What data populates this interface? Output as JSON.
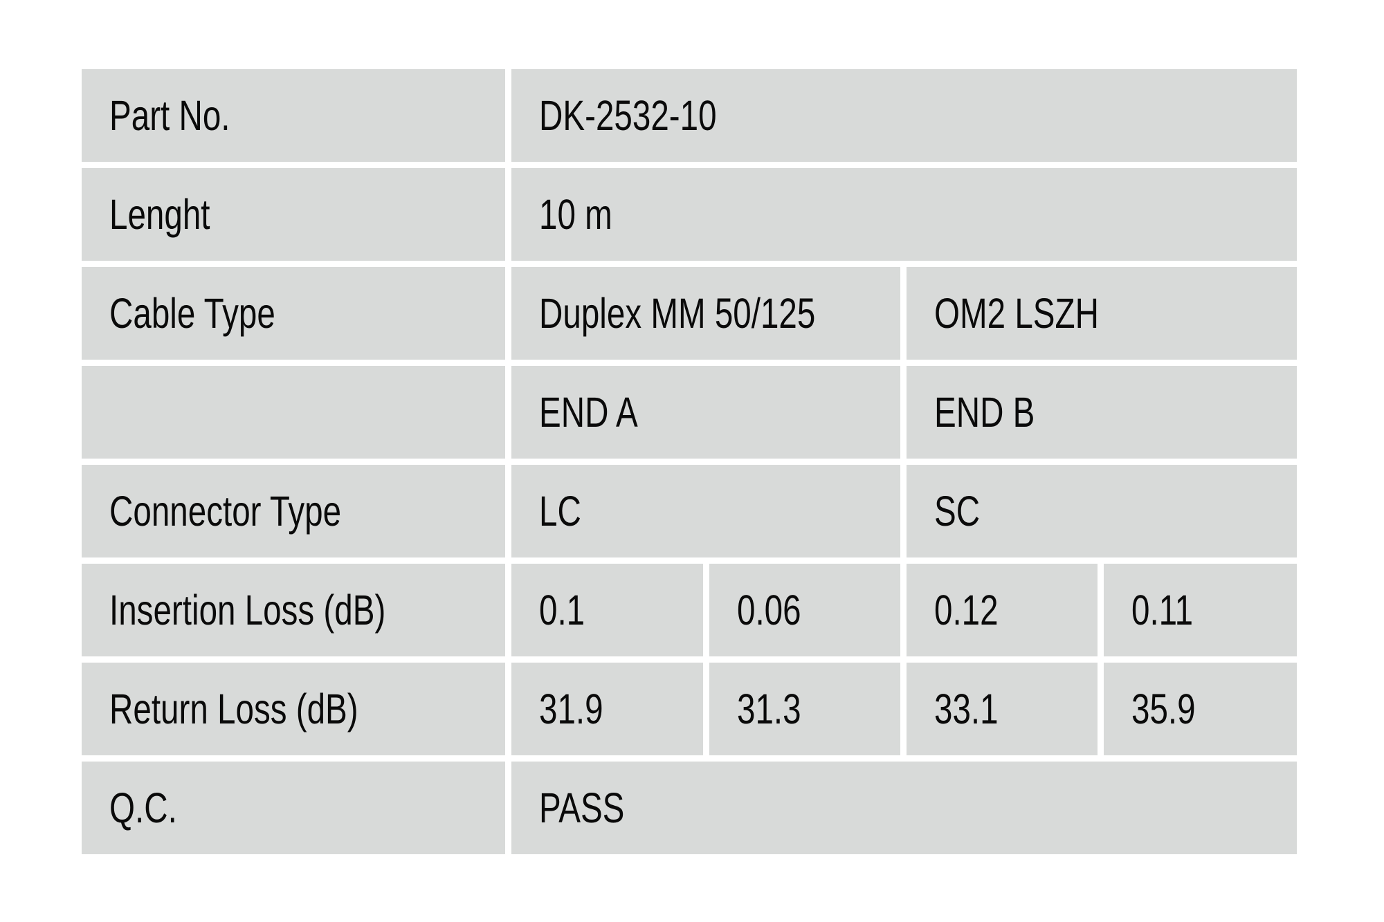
{
  "table": {
    "colors": {
      "cell_bg": "#d8dad9",
      "page_bg": "#ffffff",
      "text": "#0a0a0a"
    },
    "rows": [
      {
        "label": "Part No.",
        "cells": [
          {
            "text": "DK-2532-10"
          }
        ]
      },
      {
        "label": "Lenght",
        "cells": [
          {
            "text": "10 m"
          }
        ]
      },
      {
        "label": "Cable Type",
        "cells": [
          {
            "text": "Duplex MM 50/125"
          },
          {
            "text": "OM2 LSZH"
          }
        ]
      },
      {
        "label": "",
        "cells": [
          {
            "text": "END A"
          },
          {
            "text": "END B"
          }
        ]
      },
      {
        "label": "Connector Type",
        "cells": [
          {
            "text": "LC"
          },
          {
            "text": "SC"
          }
        ]
      },
      {
        "label": "Insertion Loss (dB)",
        "cells": [
          {
            "text": "0.1"
          },
          {
            "text": "0.06"
          },
          {
            "text": "0.12"
          },
          {
            "text": "0.11"
          }
        ]
      },
      {
        "label": "Return Loss (dB)",
        "cells": [
          {
            "text": "31.9"
          },
          {
            "text": "31.3"
          },
          {
            "text": "33.1"
          },
          {
            "text": "35.9"
          }
        ]
      },
      {
        "label": "Q.C.",
        "cells": [
          {
            "text": "PASS"
          }
        ]
      }
    ]
  }
}
